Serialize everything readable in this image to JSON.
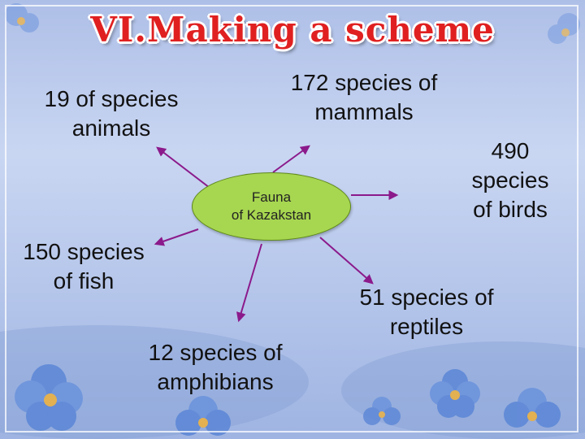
{
  "title": "VI.Making a scheme",
  "center": {
    "label": "Fauna\nof Kazakstan",
    "fill": "#a7d650"
  },
  "nodes": [
    {
      "id": "animals",
      "label": "19 of species\nanimals"
    },
    {
      "id": "mammals",
      "label": "172 species of\nmammals"
    },
    {
      "id": "birds",
      "label": "490\nspecies\nof birds"
    },
    {
      "id": "fish",
      "label": "150 species\nof fish"
    },
    {
      "id": "reptiles",
      "label": "51 species of\nreptiles"
    },
    {
      "id": "amphibians",
      "label": "12 species of\namphibians"
    }
  ],
  "colors": {
    "title": "#e02020",
    "arrows": "#8b1a8b"
  }
}
